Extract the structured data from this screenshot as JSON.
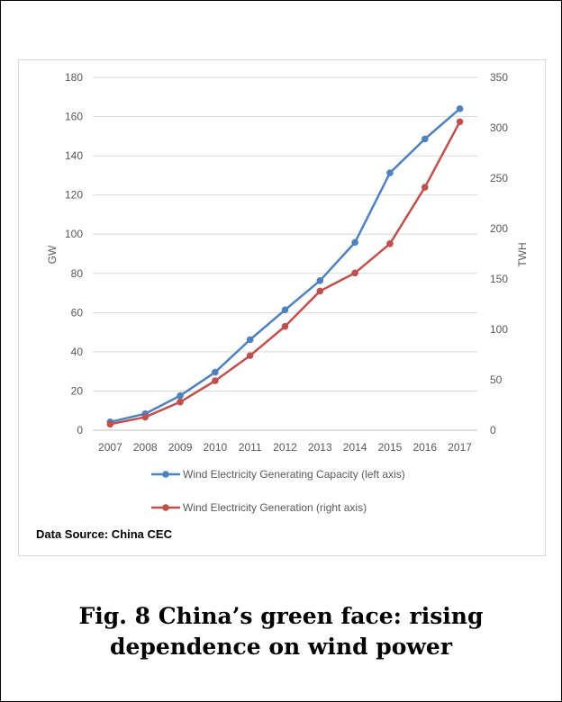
{
  "chart_data": {
    "type": "line",
    "categories": [
      "2007",
      "2008",
      "2009",
      "2010",
      "2011",
      "2012",
      "2013",
      "2014",
      "2015",
      "2016",
      "2017"
    ],
    "series": [
      {
        "name": "Wind Electricity Generating Capacity (left axis)",
        "axis": "left",
        "color": "#4f81bd",
        "values": [
          4.2,
          8.4,
          17.6,
          29.6,
          46.2,
          61.4,
          76.3,
          95.8,
          131.3,
          148.6,
          164.0
        ]
      },
      {
        "name": "Wind Electricity Generation (right axis)",
        "axis": "right",
        "color": "#c0504d",
        "values": [
          6,
          13,
          28,
          49,
          74,
          103,
          138,
          156,
          185,
          241,
          306
        ]
      }
    ],
    "ylabel_left": "GW",
    "ylabel_right": "TWH",
    "ylim_left": [
      0,
      180
    ],
    "ylim_right": [
      0,
      350
    ],
    "yticks_left": [
      "0",
      "20",
      "40",
      "60",
      "80",
      "100",
      "120",
      "140",
      "160",
      "180"
    ],
    "yticks_right": [
      "0",
      "50",
      "100",
      "150",
      "200",
      "250",
      "300",
      "350"
    ],
    "grid": true,
    "legend_position": "bottom"
  },
  "source_note": "Data Source: China CEC",
  "caption": "Fig. 8 China’s green face: rising dependence on wind power"
}
